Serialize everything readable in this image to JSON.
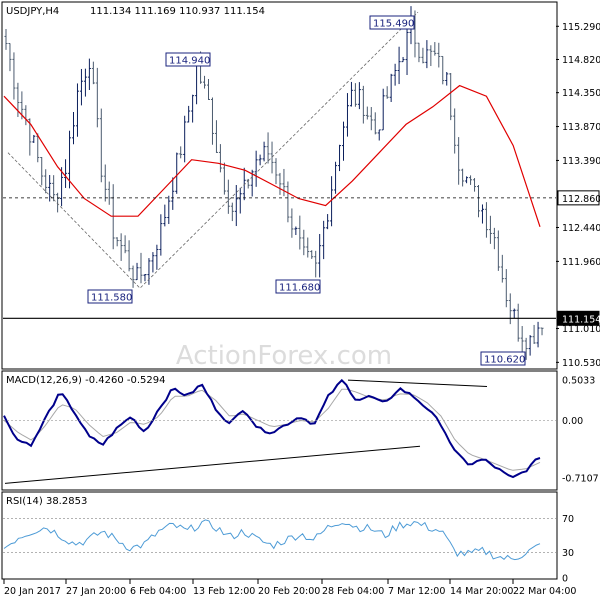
{
  "header": {
    "symbol": "USDJPY,H4",
    "ohlc": "111.134 111.169 110.937 111.154"
  },
  "watermark": "ActionForex.com",
  "colors": {
    "bull": "#0b1f5c",
    "bear": "#4a5a6e",
    "ma": "#e00000",
    "macd_main": "#00008b",
    "macd_signal": "#a8a8a8",
    "rsi": "#4d9bd6",
    "price_box_border": "#1a237e"
  },
  "chart_data": [
    {
      "type": "candlestick",
      "title": "USDJPY,H4",
      "ylim": [
        110.45,
        115.62
      ],
      "y_ticks": [
        "115.290",
        "114.820",
        "114.350",
        "113.870",
        "113.390",
        "112.440",
        "111.960",
        "111.010",
        "110.530"
      ],
      "x_ticks": [
        "20 Jan 2017",
        "27 Jan 20:00",
        "6 Feb 04:00",
        "13 Feb 12:00",
        "20 Feb 20:00",
        "28 Feb 04:00",
        "7 Mar 12:00",
        "14 Mar 20:00",
        "22 Mar 04:00"
      ],
      "close_anchors": [
        115.05,
        114.3,
        113.8,
        113.2,
        112.85,
        113.3,
        114.35,
        114.85,
        113.3,
        112.4,
        112.05,
        111.7,
        111.95,
        112.4,
        113.1,
        113.8,
        114.7,
        114.2,
        113.3,
        112.7,
        112.95,
        113.4,
        113.5,
        113.15,
        112.5,
        112.0,
        111.85,
        112.7,
        113.7,
        114.3,
        114.2,
        113.8,
        114.3,
        114.8,
        115.25,
        114.9,
        114.85,
        114.5,
        113.4,
        113.0,
        112.7,
        112.3,
        111.5,
        111.0,
        110.85,
        111.15
      ],
      "levels": [
        {
          "label": "112.860",
          "value": 112.86,
          "style": "dashed"
        },
        {
          "label": "111.154",
          "value": 111.154,
          "style": "solid"
        }
      ],
      "annotations": [
        {
          "label": "115.490",
          "value": 115.49
        },
        {
          "label": "114.940",
          "value": 114.94
        },
        {
          "label": "111.580",
          "value": 111.58
        },
        {
          "label": "111.680",
          "value": 111.68
        },
        {
          "label": "110.620",
          "value": 110.62
        }
      ],
      "moving_average_anchors": [
        114.3,
        113.9,
        113.3,
        112.85,
        112.6,
        112.6,
        113.0,
        113.4,
        113.35,
        113.25,
        113.05,
        112.85,
        112.75,
        113.1,
        113.5,
        113.9,
        114.15,
        114.45,
        114.3,
        113.6,
        112.45
      ]
    },
    {
      "type": "line",
      "title": "MACD(12,26,9) -0.4260 -0.5294",
      "ylim": [
        -0.85,
        0.6
      ],
      "y_ticks": [
        "0.5033",
        "0.00",
        "-0.7107"
      ],
      "main_anchors": [
        0.05,
        -0.25,
        -0.3,
        0.05,
        0.35,
        0.1,
        -0.2,
        -0.3,
        -0.1,
        0.05,
        -0.15,
        0.15,
        0.4,
        0.3,
        0.45,
        0.15,
        -0.05,
        0.15,
        -0.1,
        -0.15,
        -0.05,
        0.05,
        -0.05,
        0.3,
        0.5,
        0.25,
        0.3,
        0.2,
        0.4,
        0.3,
        0.15,
        -0.05,
        -0.4,
        -0.55,
        -0.48,
        -0.6,
        -0.72,
        -0.62,
        -0.45
      ],
      "signal_anchors": [
        0.0,
        -0.15,
        -0.25,
        -0.05,
        0.2,
        0.15,
        -0.05,
        -0.2,
        -0.15,
        -0.02,
        -0.05,
        0.05,
        0.3,
        0.3,
        0.38,
        0.25,
        0.05,
        0.08,
        0.0,
        -0.08,
        -0.05,
        0.0,
        -0.02,
        0.15,
        0.4,
        0.35,
        0.28,
        0.25,
        0.33,
        0.32,
        0.22,
        0.05,
        -0.25,
        -0.42,
        -0.48,
        -0.55,
        -0.62,
        -0.6,
        -0.52
      ]
    },
    {
      "type": "line",
      "title": "RSI(14) 38.2853",
      "ylim": [
        0,
        100
      ],
      "y_ticks": [
        "70",
        "30",
        "0"
      ],
      "rsi_anchors": [
        35,
        48,
        55,
        60,
        50,
        40,
        45,
        55,
        45,
        35,
        40,
        55,
        62,
        55,
        65,
        60,
        48,
        55,
        45,
        38,
        45,
        52,
        45,
        60,
        68,
        60,
        58,
        50,
        62,
        66,
        60,
        55,
        30,
        28,
        32,
        25,
        22,
        30,
        38
      ]
    }
  ]
}
